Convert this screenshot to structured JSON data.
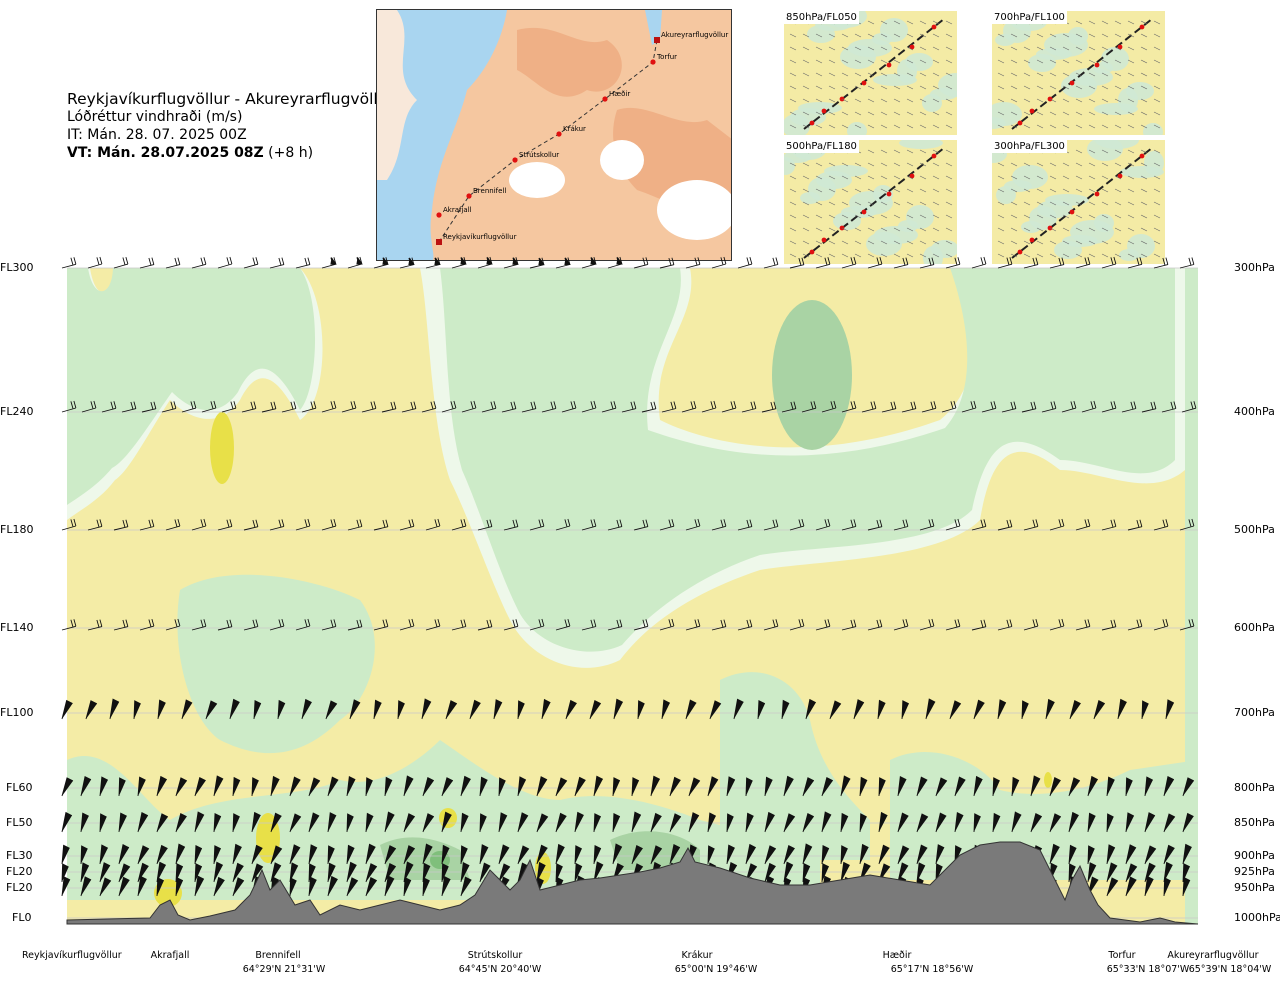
{
  "header": {
    "route": "Reykjavíkurflugvöllur - Akureyrarflugvöllur",
    "parameter": "Lóðréttur vindhraði (m/s)",
    "initial_time": "IT: Mán. 28. 07. 2025 00Z",
    "valid_time": "VT: Mán. 28.07.2025 08Z",
    "lead_time": "(+8 h)"
  },
  "route_map": {
    "waypoints": [
      "Akureyrarflugvöllur",
      "Torfur",
      "Hæðir",
      "Krákur",
      "Strútskollur",
      "Brennifell",
      "Akrafjall",
      "Reykjavíkurflugvöllur"
    ]
  },
  "level_maps": [
    {
      "label": "850hPa/FL050"
    },
    {
      "label": "700hPa/FL100"
    },
    {
      "label": "500hPa/FL180"
    },
    {
      "label": "300hPa/FL300"
    }
  ],
  "chart_data": {
    "type": "heatmap",
    "title": "Lóðréttur vindhraði (m/s)",
    "y_levels": [
      {
        "fl": "FL300",
        "hpa": "300hPa"
      },
      {
        "fl": "FL240",
        "hpa": "400hPa"
      },
      {
        "fl": "FL180",
        "hpa": "500hPa"
      },
      {
        "fl": "FL140",
        "hpa": "600hPa"
      },
      {
        "fl": "FL100",
        "hpa": "700hPa"
      },
      {
        "fl": "FL60",
        "hpa": "800hPa"
      },
      {
        "fl": "FL50",
        "hpa": "850hPa"
      },
      {
        "fl": "FL30",
        "hpa": "900hPa"
      },
      {
        "fl": "FL20",
        "hpa": "925hPa"
      },
      {
        "fl": "FL20",
        "hpa": "950hPa"
      },
      {
        "fl": "FL0",
        "hpa": "1000hPa"
      }
    ],
    "waypoints": [
      {
        "name": "Reykjavíkurflugvöllur",
        "coord": ""
      },
      {
        "name": "Akrafjall",
        "coord": ""
      },
      {
        "name": "Brennifell",
        "coord": "64°29'N 21°31'W"
      },
      {
        "name": "Strútskollur",
        "coord": "64°45'N 20°40'W"
      },
      {
        "name": "Krákur",
        "coord": "65°00'N 19°46'W"
      },
      {
        "name": "Hæðir",
        "coord": "65°17'N 18°56'W"
      },
      {
        "name": "Torfur",
        "coord": "65°33'N 18°07'W"
      },
      {
        "name": "Akureyrarflugvöllur",
        "coord": "65°39'N 18°04'W"
      }
    ],
    "colors": {
      "upward_weak": "#f4eca6",
      "upward_moderate": "#e8e048",
      "downward_weak": "#cdebc8",
      "downward_moderate": "#a9d3a4",
      "downward_strong": "#7fbf7b",
      "near_zero": "#fdfbe8",
      "near_zero_down": "#eef8ea",
      "terrain": "#7a7a7a"
    }
  }
}
